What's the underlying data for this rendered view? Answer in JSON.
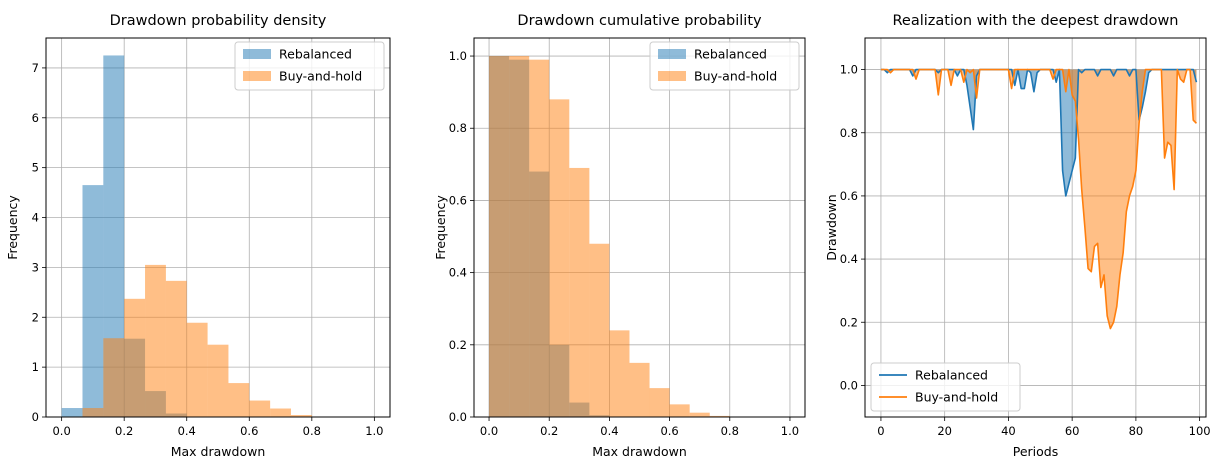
{
  "colors": {
    "rebalanced": "#1f77b4",
    "buy_and_hold": "#ff7f0e",
    "grid": "#b0b0b0"
  },
  "chart_data": [
    {
      "type": "bar",
      "title": "Drawdown probability density",
      "xlabel": "Max drawdown",
      "ylabel": "Frequency",
      "xlim": [
        -0.05,
        1.05
      ],
      "ylim": [
        0,
        7.6
      ],
      "xticks": [
        "0.0",
        "0.2",
        "0.4",
        "0.6",
        "0.8",
        "1.0"
      ],
      "yticks": [
        "0",
        "1",
        "2",
        "3",
        "4",
        "5",
        "6",
        "7"
      ],
      "grid": true,
      "legend": "top-right",
      "bin_width": 0.0667,
      "series": [
        {
          "name": "Rebalanced",
          "color_key": "rebalanced",
          "opacity": 0.5,
          "bins": [
            0,
            0.0667,
            0.1333,
            0.2,
            0.2667,
            0.3333
          ],
          "values": [
            0.18,
            4.65,
            7.25,
            1.57,
            0.52,
            0.07
          ]
        },
        {
          "name": "Buy-and-hold",
          "color_key": "buy_and_hold",
          "opacity": 0.5,
          "bins": [
            0.0667,
            0.1333,
            0.2,
            0.2667,
            0.3333,
            0.4,
            0.4667,
            0.5333,
            0.6,
            0.6667,
            0.7333,
            0.8
          ],
          "values": [
            0.18,
            1.58,
            2.37,
            3.05,
            2.73,
            1.89,
            1.45,
            0.68,
            0.33,
            0.17,
            0.04,
            0.01
          ]
        }
      ]
    },
    {
      "type": "bar",
      "title": "Drawdown cumulative probability",
      "xlabel": "Max drawdown",
      "ylabel": "Frequency",
      "xlim": [
        -0.05,
        1.05
      ],
      "ylim": [
        0,
        1.05
      ],
      "xticks": [
        "0.0",
        "0.2",
        "0.4",
        "0.6",
        "0.8",
        "1.0"
      ],
      "yticks": [
        "0.0",
        "0.2",
        "0.4",
        "0.6",
        "0.8",
        "1.0"
      ],
      "grid": true,
      "legend": "top-right",
      "bin_width": 0.0667,
      "series": [
        {
          "name": "Rebalanced",
          "color_key": "rebalanced",
          "opacity": 0.5,
          "bins": [
            0,
            0.0667,
            0.1333,
            0.2,
            0.2667,
            0.3333
          ],
          "values": [
            1.0,
            0.99,
            0.68,
            0.2,
            0.04,
            0.005
          ]
        },
        {
          "name": "Buy-and-hold",
          "color_key": "buy_and_hold",
          "opacity": 0.5,
          "bins": [
            0,
            0.0667,
            0.1333,
            0.2,
            0.2667,
            0.3333,
            0.4,
            0.4667,
            0.5333,
            0.6,
            0.6667,
            0.7333,
            0.8
          ],
          "values": [
            1.0,
            1.0,
            0.99,
            0.88,
            0.69,
            0.48,
            0.24,
            0.15,
            0.08,
            0.035,
            0.012,
            0.003,
            0.001
          ]
        }
      ]
    },
    {
      "type": "line",
      "title": "Realization with the deepest drawdown",
      "xlabel": "Periods",
      "ylabel": "Drawdown",
      "xlim": [
        -5,
        102
      ],
      "ylim": [
        -0.1,
        1.1
      ],
      "xticks": [
        "0",
        "20",
        "40",
        "60",
        "80",
        "100"
      ],
      "yticks": [
        "0.0",
        "0.2",
        "0.4",
        "0.6",
        "0.8",
        "1.0"
      ],
      "grid": true,
      "legend": "bottom-left",
      "fill_to": 1.0,
      "series": [
        {
          "name": "Rebalanced",
          "color_key": "rebalanced",
          "x": [
            0,
            1,
            2,
            3,
            4,
            5,
            6,
            7,
            8,
            9,
            10,
            11,
            12,
            13,
            14,
            15,
            16,
            17,
            18,
            19,
            20,
            21,
            22,
            23,
            24,
            25,
            26,
            27,
            28,
            29,
            30,
            31,
            32,
            33,
            34,
            35,
            36,
            37,
            38,
            39,
            40,
            41,
            42,
            43,
            44,
            45,
            46,
            47,
            48,
            49,
            50,
            51,
            52,
            53,
            54,
            55,
            56,
            57,
            58,
            59,
            60,
            61,
            62,
            63,
            64,
            65,
            66,
            67,
            68,
            69,
            70,
            71,
            72,
            73,
            74,
            75,
            76,
            77,
            78,
            79,
            80,
            81,
            82,
            83,
            84,
            85,
            86,
            87,
            88,
            89,
            90,
            91,
            92,
            93,
            94,
            95,
            96,
            97,
            98,
            99
          ],
          "y": [
            1.0,
            1.0,
            0.99,
            1.0,
            1.0,
            1.0,
            1.0,
            1.0,
            1.0,
            1.0,
            0.98,
            1.0,
            1.0,
            1.0,
            1.0,
            1.0,
            1.0,
            1.0,
            0.99,
            1.0,
            1.0,
            1.0,
            1.0,
            1.0,
            0.98,
            1.0,
            1.0,
            0.95,
            0.88,
            0.81,
            0.98,
            1.0,
            1.0,
            1.0,
            1.0,
            1.0,
            1.0,
            1.0,
            1.0,
            1.0,
            1.0,
            1.0,
            0.95,
            1.0,
            0.94,
            0.94,
            1.0,
            0.99,
            0.93,
            0.99,
            1.0,
            1.0,
            1.0,
            1.0,
            1.0,
            0.96,
            1.0,
            0.68,
            0.6,
            0.64,
            0.68,
            0.72,
            1.0,
            0.99,
            1.0,
            1.0,
            1.0,
            1.0,
            0.98,
            1.0,
            1.0,
            1.0,
            1.0,
            0.98,
            1.0,
            1.0,
            1.0,
            1.0,
            0.98,
            1.0,
            1.0,
            0.84,
            0.88,
            0.93,
            0.99,
            1.0,
            1.0,
            1.0,
            1.0,
            1.0,
            1.0,
            1.0,
            1.0,
            1.0,
            1.0,
            1.0,
            1.0,
            1.0,
            1.0,
            0.96
          ]
        },
        {
          "name": "Buy-and-hold",
          "color_key": "buy_and_hold",
          "x": [
            0,
            1,
            2,
            3,
            4,
            5,
            6,
            7,
            8,
            9,
            10,
            11,
            12,
            13,
            14,
            15,
            16,
            17,
            18,
            19,
            20,
            21,
            22,
            23,
            24,
            25,
            26,
            27,
            28,
            29,
            30,
            31,
            32,
            33,
            34,
            35,
            36,
            37,
            38,
            39,
            40,
            41,
            42,
            43,
            44,
            45,
            46,
            47,
            48,
            49,
            50,
            51,
            52,
            53,
            54,
            55,
            56,
            57,
            58,
            59,
            60,
            61,
            62,
            63,
            64,
            65,
            66,
            67,
            68,
            69,
            70,
            71,
            72,
            73,
            74,
            75,
            76,
            77,
            78,
            79,
            80,
            81,
            82,
            83,
            84,
            85,
            86,
            87,
            88,
            89,
            90,
            91,
            92,
            93,
            94,
            95,
            96,
            97,
            98,
            99
          ],
          "y": [
            1.0,
            1.0,
            1.0,
            0.99,
            1.0,
            1.0,
            1.0,
            1.0,
            1.0,
            1.0,
            1.0,
            0.97,
            1.0,
            1.0,
            1.0,
            1.0,
            1.0,
            1.0,
            0.92,
            1.0,
            1.0,
            1.0,
            0.95,
            1.0,
            1.0,
            1.0,
            0.96,
            1.0,
            0.99,
            1.0,
            0.91,
            1.0,
            1.0,
            1.0,
            1.0,
            1.0,
            1.0,
            1.0,
            1.0,
            1.0,
            1.0,
            0.94,
            1.0,
            1.0,
            1.0,
            1.0,
            1.0,
            1.0,
            1.0,
            1.0,
            1.0,
            1.0,
            1.0,
            1.0,
            0.97,
            1.0,
            1.0,
            1.0,
            0.93,
            1.0,
            0.92,
            0.9,
            0.78,
            0.62,
            0.5,
            0.37,
            0.36,
            0.44,
            0.45,
            0.31,
            0.35,
            0.22,
            0.18,
            0.2,
            0.25,
            0.35,
            0.42,
            0.55,
            0.6,
            0.63,
            0.68,
            0.83,
            0.93,
            1.0,
            1.0,
            1.0,
            1.0,
            1.0,
            1.0,
            0.72,
            0.77,
            0.76,
            0.62,
            1.0,
            0.97,
            0.96,
            1.0,
            1.0,
            0.84,
            0.83
          ]
        }
      ]
    }
  ]
}
